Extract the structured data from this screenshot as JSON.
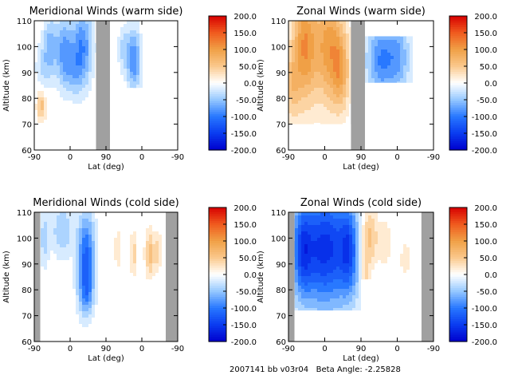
{
  "chart_data": [
    {
      "type": "heatmap",
      "title": "Meridional Winds (warm side)",
      "xlabel": "Lat (deg)",
      "ylabel": "Altitude (km)",
      "x_ticks": [
        "-90",
        "0",
        "90",
        "0",
        "-90"
      ],
      "y_ticks": [
        "60",
        "70",
        "80",
        "90",
        "100",
        "110"
      ],
      "ylim": [
        60,
        110
      ],
      "colorbar": {
        "ticks": [
          "200.0",
          "150.0",
          "100.0",
          "50.0",
          "0.0",
          "-50.0",
          "-100.0",
          "-150.0",
          "-200.0"
        ],
        "range": [
          -200,
          200
        ]
      },
      "blobs": [
        {
          "lat": -50,
          "alt": 100,
          "value": -60,
          "lat_w": 12,
          "alt_w": 8
        },
        {
          "lat": -15,
          "alt": 98,
          "value": -80,
          "lat_w": 14,
          "alt_w": 9
        },
        {
          "lat": 30,
          "alt": 100,
          "value": -90,
          "lat_w": 18,
          "alt_w": 10
        },
        {
          "lat": -70,
          "alt": 92,
          "value": -30,
          "lat_w": 12,
          "alt_w": 6
        },
        {
          "lat": -72,
          "alt": 77,
          "value": 60,
          "lat_w": 8,
          "alt_w": 4
        },
        {
          "lat": 10,
          "alt": 90,
          "value": -40,
          "lat_w": 15,
          "alt_w": 6
        },
        {
          "lat": 160,
          "alt": 95,
          "value": -90,
          "lat_w": 12,
          "alt_w": 8
        },
        {
          "lat": 135,
          "alt": 99,
          "value": -35,
          "lat_w": 10,
          "alt_w": 6
        }
      ],
      "mask_regions": [
        {
          "x0": 65,
          "x1": 100,
          "y0": 60,
          "y1": 110,
          "fill": "gap"
        },
        {
          "x0": 100,
          "x1": 270,
          "y0": 60,
          "y1": 84,
          "fill": "blank"
        }
      ],
      "gap_color": "#a0a0a0"
    },
    {
      "type": "heatmap",
      "title": "Zonal Winds (warm side)",
      "xlabel": "Lat (deg)",
      "ylabel": "Altitude (km)",
      "x_ticks": [
        "-90",
        "0",
        "90",
        "0",
        "-90"
      ],
      "y_ticks": [
        "60",
        "70",
        "80",
        "90",
        "100",
        "110"
      ],
      "ylim": [
        60,
        110
      ],
      "colorbar": {
        "ticks": [
          "200.0",
          "150.0",
          "100.0",
          "50.0",
          "0.0",
          "-50.0",
          "-100.0",
          "-150.0",
          "-200.0"
        ],
        "range": [
          -200,
          200
        ]
      },
      "blobs": [
        {
          "lat": -50,
          "alt": 100,
          "value": 110,
          "lat_w": 20,
          "alt_w": 15
        },
        {
          "lat": 10,
          "alt": 100,
          "value": 100,
          "lat_w": 25,
          "alt_w": 15
        },
        {
          "lat": -80,
          "alt": 85,
          "value": 50,
          "lat_w": 12,
          "alt_w": 10
        },
        {
          "lat": 40,
          "alt": 90,
          "value": 70,
          "lat_w": 15,
          "alt_w": 10
        },
        {
          "lat": 140,
          "alt": 95,
          "value": -90,
          "lat_w": 25,
          "alt_w": 10
        },
        {
          "lat": 185,
          "alt": 96,
          "value": -60,
          "lat_w": 20,
          "alt_w": 10
        }
      ],
      "mask_regions": [
        {
          "x0": 65,
          "x1": 100,
          "y0": 60,
          "y1": 110,
          "fill": "gap"
        },
        {
          "x0": 100,
          "x1": 270,
          "y0": 60,
          "y1": 86,
          "fill": "blank"
        },
        {
          "x0": 100,
          "x1": 270,
          "y0": 104,
          "y1": 110,
          "fill": "blank"
        },
        {
          "x0": -90,
          "x1": 65,
          "y0": 60,
          "y1": 70,
          "fill": "blank"
        }
      ],
      "gap_color": "#a0a0a0"
    },
    {
      "type": "heatmap",
      "title": "Meridional Winds (cold side)",
      "xlabel": "Lat (deg)",
      "ylabel": "Altitude (km)",
      "x_ticks": [
        "-90",
        "0",
        "90",
        "0",
        "-90"
      ],
      "y_ticks": [
        "60",
        "70",
        "80",
        "90",
        "100",
        "110"
      ],
      "ylim": [
        60,
        110
      ],
      "colorbar": {
        "ticks": [
          "200.0",
          "150.0",
          "100.0",
          "50.0",
          "0.0",
          "-50.0",
          "-100.0",
          "-150.0",
          "-200.0"
        ],
        "range": [
          -200,
          200
        ]
      },
      "blobs": [
        {
          "lat": 40,
          "alt": 92,
          "value": -120,
          "lat_w": 15,
          "alt_w": 12
        },
        {
          "lat": -20,
          "alt": 103,
          "value": -50,
          "lat_w": 18,
          "alt_w": 7
        },
        {
          "lat": -65,
          "alt": 100,
          "value": -40,
          "lat_w": 8,
          "alt_w": 8
        },
        {
          "lat": 40,
          "alt": 78,
          "value": -50,
          "lat_w": 12,
          "alt_w": 5
        },
        {
          "lat": 120,
          "alt": 96,
          "value": 30,
          "lat_w": 6,
          "alt_w": 5
        },
        {
          "lat": 160,
          "alt": 94,
          "value": 40,
          "lat_w": 6,
          "alt_w": 6
        },
        {
          "lat": 200,
          "alt": 94,
          "value": 60,
          "lat_w": 8,
          "alt_w": 6
        },
        {
          "lat": 220,
          "alt": 95,
          "value": 40,
          "lat_w": 6,
          "alt_w": 5
        }
      ],
      "mask_regions": [
        {
          "x0": -90,
          "x1": -75,
          "y0": 60,
          "y1": 110,
          "fill": "gap"
        },
        {
          "x0": 240,
          "x1": 270,
          "y0": 60,
          "y1": 110,
          "fill": "gap"
        },
        {
          "x0": 90,
          "x1": 240,
          "y0": 60,
          "y1": 84,
          "fill": "blank"
        }
      ],
      "gap_color": "#a0a0a0"
    },
    {
      "type": "heatmap",
      "title": "Zonal Winds (cold side)",
      "xlabel": "Lat (deg)",
      "ylabel": "Altitude (km)",
      "x_ticks": [
        "-90",
        "0",
        "90",
        "0",
        "-90"
      ],
      "y_ticks": [
        "60",
        "70",
        "80",
        "90",
        "100",
        "110"
      ],
      "ylim": [
        60,
        110
      ],
      "colorbar": {
        "ticks": [
          "200.0",
          "150.0",
          "100.0",
          "50.0",
          "0.0",
          "-50.0",
          "-100.0",
          "-150.0",
          "-200.0"
        ],
        "range": [
          -200,
          200
        ]
      },
      "blobs": [
        {
          "lat": 0,
          "alt": 96,
          "value": -160,
          "lat_w": 50,
          "alt_w": 16
        },
        {
          "lat": -55,
          "alt": 95,
          "value": -80,
          "lat_w": 15,
          "alt_w": 12
        },
        {
          "lat": 60,
          "alt": 95,
          "value": -80,
          "lat_w": 15,
          "alt_w": 12
        },
        {
          "lat": 110,
          "alt": 100,
          "value": 70,
          "lat_w": 15,
          "alt_w": 8
        },
        {
          "lat": 100,
          "alt": 85,
          "value": 40,
          "lat_w": 8,
          "alt_w": 6
        },
        {
          "lat": 150,
          "alt": 98,
          "value": 30,
          "lat_w": 10,
          "alt_w": 6
        },
        {
          "lat": 200,
          "alt": 92,
          "value": 20,
          "lat_w": 10,
          "alt_w": 6
        }
      ],
      "mask_regions": [
        {
          "x0": -90,
          "x1": -75,
          "y0": 60,
          "y1": 110,
          "fill": "gap"
        },
        {
          "x0": 240,
          "x1": 270,
          "y0": 60,
          "y1": 110,
          "fill": "gap"
        },
        {
          "x0": 90,
          "x1": 240,
          "y0": 60,
          "y1": 84,
          "fill": "blank"
        },
        {
          "x0": -75,
          "x1": 90,
          "y0": 60,
          "y1": 72,
          "fill": "blank"
        }
      ],
      "gap_color": "#a0a0a0"
    }
  ],
  "footer": {
    "date": "2007141",
    "tag": "bb",
    "version": "v03r04",
    "beta_label": "Beta Angle:",
    "beta_value": "-2.25828"
  }
}
